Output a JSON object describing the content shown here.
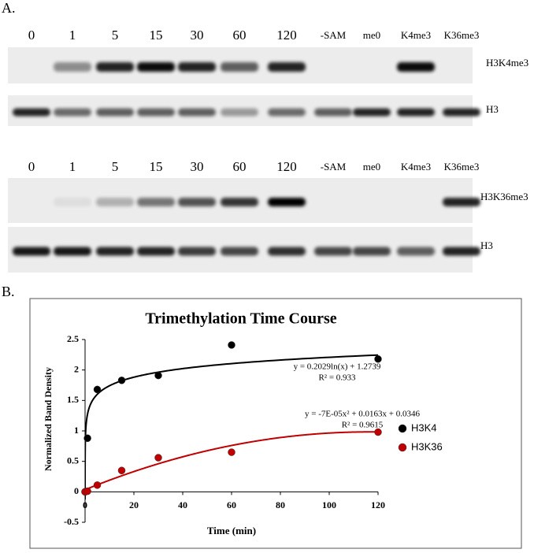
{
  "panel_a": {
    "label": "A.",
    "blots": [
      {
        "lanes": [
          "0",
          "1",
          "5",
          "15",
          "30",
          "60",
          "120",
          "-SAM",
          "me0",
          "K4me3",
          "K36me3"
        ],
        "rows": [
          {
            "label": "H3K4me3"
          },
          {
            "label": "H3"
          }
        ]
      },
      {
        "lanes": [
          "0",
          "1",
          "5",
          "15",
          "30",
          "60",
          "120",
          "-SAM",
          "me0",
          "K4me3",
          "K36me3"
        ],
        "rows": [
          {
            "label": "H3K36me3"
          },
          {
            "label": "H3"
          }
        ]
      }
    ]
  },
  "panel_b_label": "B.",
  "chart_data": {
    "type": "scatter",
    "title": "Trimethylation Time Course",
    "x_label": "Time (min)",
    "y_label": "Normalized Band Density",
    "x": [
      0,
      1,
      5,
      15,
      30,
      60,
      120
    ],
    "series": [
      {
        "name": "H3K4",
        "color": "#000000",
        "values": [
          0,
          0.88,
          1.68,
          1.83,
          1.91,
          2.41,
          2.18
        ]
      },
      {
        "name": "H3K36",
        "color": "#c00000",
        "values": [
          0,
          0.01,
          0.11,
          0.35,
          0.56,
          0.65,
          0.98
        ]
      }
    ],
    "trendlines": [
      {
        "series": "H3K4",
        "kind": "log",
        "coefficients": [
          0.2029,
          1.2739
        ],
        "equation": "y = 0.2029ln(x) + 1.2739",
        "r2": "R² = 0.933"
      },
      {
        "series": "H3K36",
        "kind": "poly2",
        "coefficients": [
          -7e-05,
          0.0163,
          0.0346
        ],
        "equation": "y = -7E-05x² + 0.0163x + 0.0346",
        "r2": "R² = 0.9615"
      }
    ],
    "xlim": [
      0,
      120
    ],
    "xticks": [
      0,
      20,
      40,
      60,
      80,
      100,
      120
    ],
    "ylim": [
      -0.5,
      2.5
    ],
    "yticks": [
      -0.5,
      0,
      0.5,
      1,
      1.5,
      2,
      2.5
    ],
    "grid": false,
    "legend": "right"
  }
}
